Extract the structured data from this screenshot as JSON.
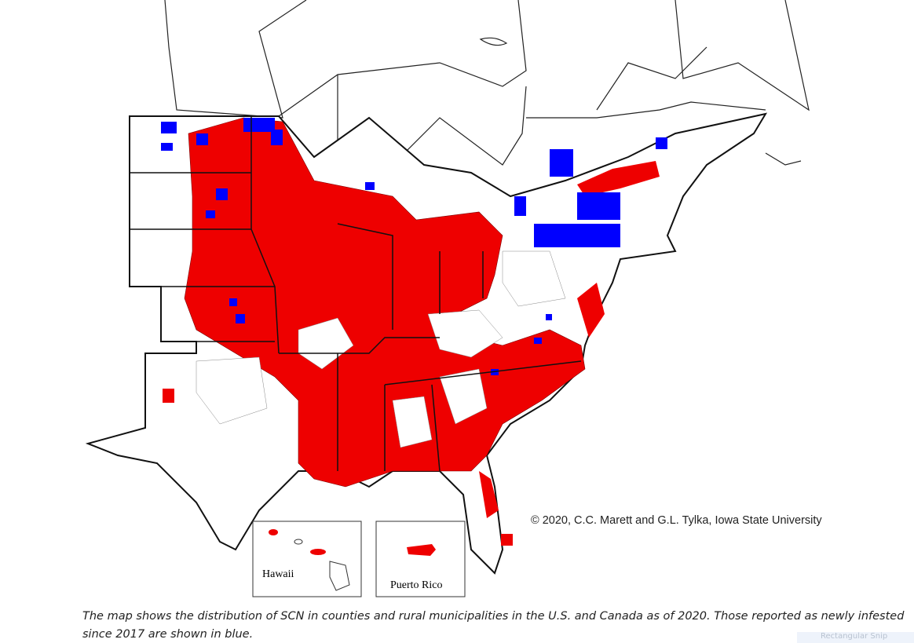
{
  "map": {
    "credit": "© 2020, C.C. Marett and G.L. Tylka, Iowa State University",
    "insets": [
      {
        "label": "Hawaii"
      },
      {
        "label": "Puerto Rico"
      }
    ]
  },
  "caption": "The map shows the distribution of SCN in counties and rural municipalities in the U.S. and Canada as of 2020. Those reported as newly infested since 2017 are shown in blue.",
  "overlay": "Rectangular Snip"
}
